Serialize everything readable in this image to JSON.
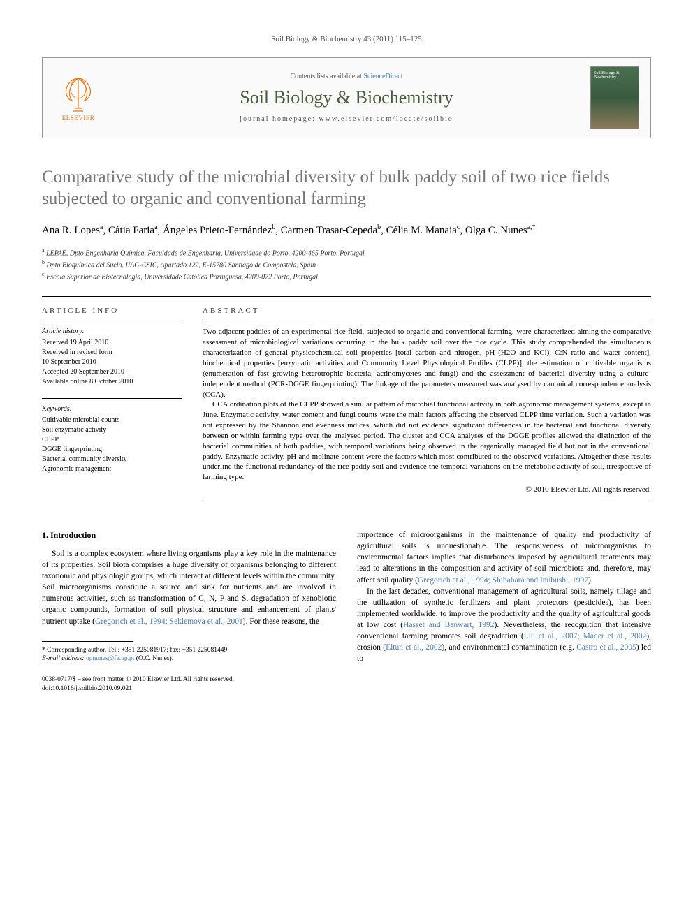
{
  "running_head": "Soil Biology & Biochemistry 43 (2011) 115–125",
  "masthead": {
    "contents_prefix": "Contents lists available at ",
    "contents_link": "ScienceDirect",
    "journal_name": "Soil Biology & Biochemistry",
    "homepage_prefix": "journal homepage: ",
    "homepage_url": "www.elsevier.com/locate/soilbio",
    "publisher_label": "ELSEVIER",
    "cover_label": "Soil Biology & Biochemistry"
  },
  "title": "Comparative study of the microbial diversity of bulk paddy soil of two rice fields subjected to organic and conventional farming",
  "authors_html": "Ana R. Lopes<sup>a</sup>, Cátia Faria<sup>a</sup>, Ángeles Prieto-Fernández<sup>b</sup>, Carmen Trasar-Cepeda<sup>b</sup>, Célia M. Manaia<sup>c</sup>, Olga C. Nunes<sup>a,</sup><sup class=\"star\">*</sup>",
  "affiliations": [
    "a LEPAE, Dpto Engenharia Química, Faculdade de Engenharia, Universidade do Porto, 4200-465 Porto, Portugal",
    "b Dpto Bioquímica del Suelo, IIAG-CSIC, Apartado 122, E-15780 Santiago de Compostela, Spain",
    "c Escola Superior de Biotecnologia, Universidade Católica Portuguesa, 4200-072 Porto, Portugal"
  ],
  "article_info": {
    "heading": "ARTICLE INFO",
    "history_label": "Article history:",
    "history": [
      "Received 19 April 2010",
      "Received in revised form",
      "10 September 2010",
      "Accepted 20 September 2010",
      "Available online 8 October 2010"
    ],
    "keywords_label": "Keywords:",
    "keywords": [
      "Cultivable microbial counts",
      "Soil enzymatic activity",
      "CLPP",
      "DGGE fingerprinting",
      "Bacterial community diversity",
      "Agronomic management"
    ]
  },
  "abstract": {
    "heading": "ABSTRACT",
    "paragraphs": [
      "Two adjacent paddies of an experimental rice field, subjected to organic and conventional farming, were characterized aiming the comparative assessment of microbiological variations occurring in the bulk paddy soil over the rice cycle. This study comprehended the simultaneous characterization of general physicochemical soil properties [total carbon and nitrogen, pH (H2O and KCl), C:N ratio and water content], biochemical properties [enzymatic activities and Community Level Physiological Profiles (CLPP)], the estimation of cultivable organisms (enumeration of fast growing heterotrophic bacteria, actinomycetes and fungi) and the assessment of bacterial diversity using a culture-independent method (PCR-DGGE fingerprinting). The linkage of the parameters measured was analysed by canonical correspondence analysis (CCA).",
      "CCA ordination plots of the CLPP showed a similar pattern of microbial functional activity in both agronomic management systems, except in June. Enzymatic activity, water content and fungi counts were the main factors affecting the observed CLPP time variation. Such a variation was not expressed by the Shannon and evenness indices, which did not evidence significant differences in the bacterial and functional diversity between or within farming type over the analysed period. The cluster and CCA analyses of the DGGE profiles allowed the distinction of the bacterial communities of both paddies, with temporal variations being observed in the organically managed field but not in the conventional paddy. Enzymatic activity, pH and molinate content were the factors which most contributed to the observed variations. Altogether these results underline the functional redundancy of the rice paddy soil and evidence the temporal variations on the metabolic activity of soil, irrespective of farming type."
    ],
    "copyright": "© 2010 Elsevier Ltd. All rights reserved."
  },
  "body": {
    "section_heading": "1. Introduction",
    "col1_p1": "Soil is a complex ecosystem where living organisms play a key role in the maintenance of its properties. Soil biota comprises a huge diversity of organisms belonging to different taxonomic and physiologic groups, which interact at different levels within the community. Soil microorganisms constitute a source and sink for nutrients and are involved in numerous activities, such as transformation of C, N, P and S, degradation of xenobiotic organic compounds, formation of soil physical structure and enhancement of plants' nutrient uptake (",
    "col1_cite1": "Gregorich et al., 1994; Seklemova et al., 2001",
    "col1_p1_tail": "). For these reasons, the",
    "col2_p1": "importance of microorganisms in the maintenance of quality and productivity of agricultural soils is unquestionable. The responsiveness of microorganisms to environmental factors implies that disturbances imposed by agricultural treatments may lead to alterations in the composition and activity of soil microbiota and, therefore, may affect soil quality (",
    "col2_cite1": "Gregorich et al., 1994; Shibahara and Inubushi, 1997",
    "col2_p1_tail": ").",
    "col2_p2": "In the last decades, conventional management of agricultural soils, namely tillage and the utilization of synthetic fertilizers and plant protectors (pesticides), has been implemented worldwide, to improve the productivity and the quality of agricultural goods at low cost (",
    "col2_cite2": "Hasset and Banwart, 1992",
    "col2_p2_mid": "). Nevertheless, the recognition that intensive conventional farming promotes soil degradation (",
    "col2_cite3": "Liu et al., 2007; Mader et al., 2002",
    "col2_p2_mid2": "), erosion (",
    "col2_cite4": "Eltun et al., 2002",
    "col2_p2_mid3": "), and environmental contamination (e.g. ",
    "col2_cite5": "Castro et al., 2005",
    "col2_p2_tail": ") led to"
  },
  "footnote": {
    "corr_label": "* Corresponding author. Tel.: +351 225081917; fax: +351 225081449.",
    "email_label": "E-mail address: ",
    "email": "opnunes@fe.up.pt",
    "email_tail": " (O.C. Nunes)."
  },
  "page_foot": {
    "line1": "0038-0717/$ – see front matter © 2010 Elsevier Ltd. All rights reserved.",
    "line2": "doi:10.1016/j.soilbio.2010.09.021"
  },
  "colors": {
    "title_gray": "#777777",
    "link_blue": "#4a7db5",
    "journal_green": "#4a5a3a",
    "elsevier_orange": "#e67817"
  }
}
